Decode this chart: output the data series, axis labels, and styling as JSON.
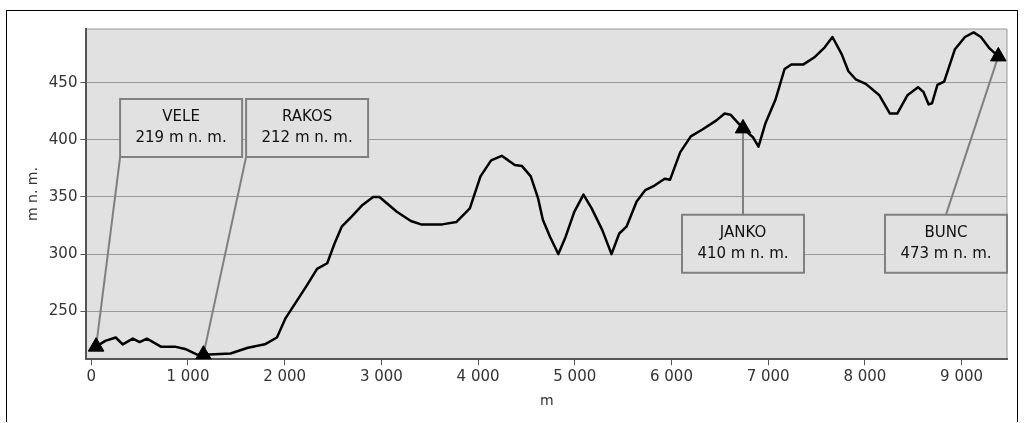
{
  "chart_data": {
    "type": "line",
    "xlabel": "m",
    "ylabel": "m n. m.",
    "xlim": [
      -50,
      9470
    ],
    "ylim": [
      208,
      497
    ],
    "xticks": [
      0,
      {
        "value": 1000,
        "label": "1 000"
      },
      {
        "value": 2000,
        "label": "2 000"
      },
      {
        "value": 3000,
        "label": "3 000"
      },
      {
        "value": 4000,
        "label": "4 000"
      },
      {
        "value": 5000,
        "label": "5 000"
      },
      {
        "value": 6000,
        "label": "6 000"
      },
      {
        "value": 7000,
        "label": "7 000"
      },
      {
        "value": 8000,
        "label": "8 000"
      },
      {
        "value": 9000,
        "label": "9 000"
      }
    ],
    "yticks": [
      250,
      300,
      350,
      400,
      450
    ],
    "grid": "y",
    "legend": false,
    "line_style": "solid",
    "series": [
      {
        "color": "#000000",
        "marker": "none",
        "x": [
          50,
          145,
          253,
          325,
          430,
          500,
          575,
          720,
          865,
          970,
          1095,
          1160,
          1440,
          1620,
          1795,
          1920,
          2010,
          2225,
          2335,
          2440,
          2515,
          2590,
          2695,
          2805,
          2915,
          2980,
          3160,
          3305,
          3410,
          3630,
          3775,
          3915,
          4025,
          4135,
          4245,
          4380,
          4455,
          4545,
          4620,
          4670,
          4745,
          4830,
          4905,
          4995,
          5090,
          5175,
          5285,
          5380,
          5460,
          5535,
          5640,
          5730,
          5825,
          5930,
          5985,
          6090,
          6200,
          6320,
          6465,
          6550,
          6610,
          6740,
          6845,
          6900,
          6970,
          7075,
          7170,
          7240,
          7365,
          7475,
          7585,
          7665,
          7760,
          7830,
          7905,
          8010,
          8150,
          8260,
          8335,
          8440,
          8550,
          8605,
          8660,
          8695,
          8750,
          8820,
          8930,
          9035,
          9125,
          9200,
          9290,
          9380
        ],
        "values": [
          219,
          224,
          227,
          221,
          226,
          223,
          226,
          219,
          219,
          217,
          212,
          212,
          213,
          218,
          221,
          227,
          244,
          272,
          287,
          292,
          309,
          324,
          333,
          343,
          350,
          350,
          337,
          329,
          326,
          326,
          328,
          340,
          368,
          382,
          386,
          378,
          377,
          368,
          349,
          330,
          315,
          300,
          315,
          337,
          352,
          340,
          321,
          300,
          318,
          324,
          346,
          356,
          360,
          366,
          365,
          389,
          403,
          409,
          417,
          423,
          422,
          410,
          402,
          394,
          414,
          435,
          462,
          466,
          466,
          472,
          481,
          490,
          475,
          460,
          453,
          449,
          439,
          423,
          423,
          439,
          446,
          442,
          431,
          432,
          448,
          451,
          479,
          490,
          494,
          490,
          480,
          473
        ]
      },
      {
        "type": "scatter",
        "color": "#000000",
        "marker": "triangle",
        "x": [
          50,
          1160,
          6740,
          9380
        ],
        "values": [
          219,
          212,
          410,
          473
        ]
      }
    ],
    "annotations": [
      {
        "text": "VELE\n219 m n. m.",
        "x": 50,
        "y": 219
      },
      {
        "text": "RAKOS\n212 m n. m.",
        "x": 1160,
        "y": 212
      },
      {
        "text": "JANKO\n410 m n. m.",
        "x": 6740,
        "y": 410
      },
      {
        "text": "BUNC\n473 m n. m.",
        "x": 9380,
        "y": 473
      }
    ]
  }
}
